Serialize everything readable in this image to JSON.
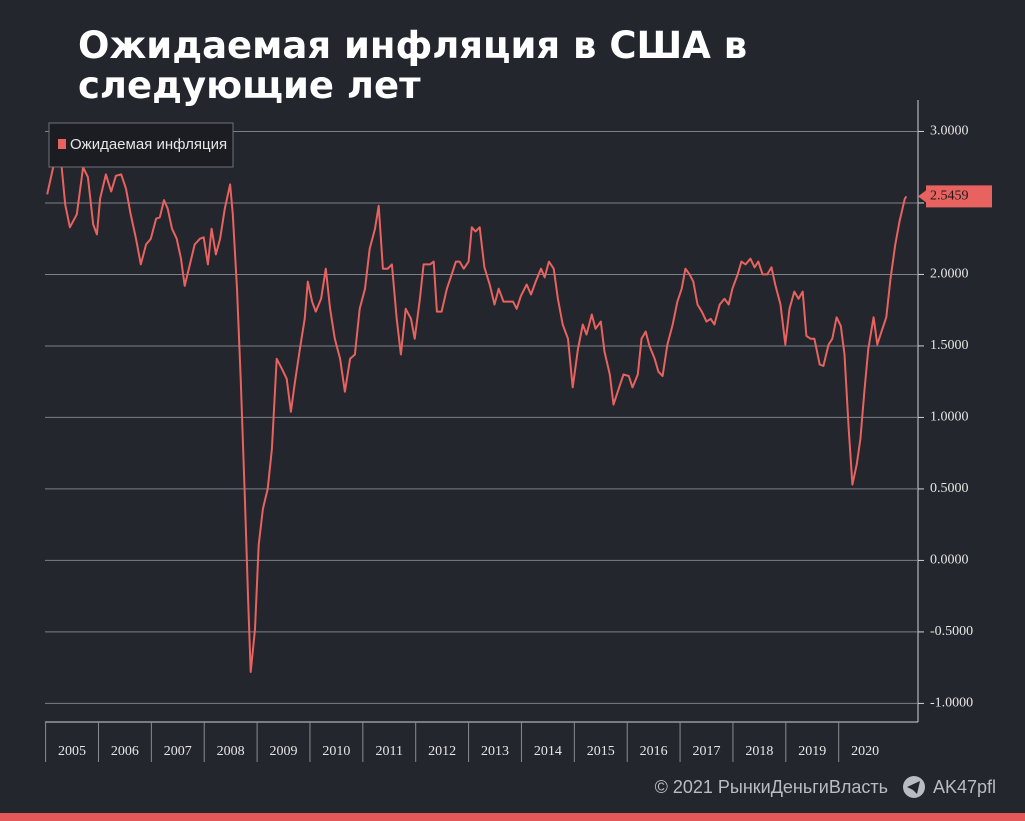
{
  "chart_data": {
    "type": "line",
    "title": "Ожидаемая инфляция в США в следующие лет",
    "x": [
      2005.03,
      2005.18,
      2005.27,
      2005.37,
      2005.46,
      2005.59,
      2005.71,
      2005.8,
      2005.9,
      2005.97,
      2006.03,
      2006.14,
      2006.24,
      2006.33,
      2006.43,
      2006.52,
      2006.61,
      2006.71,
      2006.8,
      2006.9,
      2006.99,
      2007.09,
      2007.16,
      2007.24,
      2007.31,
      2007.39,
      2007.48,
      2007.56,
      2007.63,
      2007.73,
      2007.82,
      2007.92,
      2007.99,
      2008.07,
      2008.14,
      2008.22,
      2008.3,
      2008.39,
      2008.49,
      2008.54,
      2008.62,
      2008.69,
      2008.77,
      2008.83,
      2008.88,
      2008.96,
      2009.03,
      2009.11,
      2009.2,
      2009.28,
      2009.37,
      2009.47,
      2009.56,
      2009.64,
      2009.71,
      2009.81,
      2009.9,
      2009.96,
      2010.04,
      2010.11,
      2010.21,
      2010.3,
      2010.38,
      2010.47,
      2010.57,
      2010.66,
      2010.76,
      2010.85,
      2010.94,
      2011.04,
      2011.13,
      2011.23,
      2011.3,
      2011.38,
      2011.47,
      2011.55,
      2011.64,
      2011.72,
      2011.81,
      2011.91,
      2011.98,
      2012.08,
      2012.15,
      2012.27,
      2012.34,
      2012.4,
      2012.49,
      2012.59,
      2012.68,
      2012.76,
      2012.83,
      2012.91,
      2013.0,
      2013.06,
      2013.13,
      2013.21,
      2013.3,
      2013.4,
      2013.49,
      2013.57,
      2013.66,
      2013.76,
      2013.84,
      2013.91,
      2013.99,
      2014.1,
      2014.18,
      2014.27,
      2014.37,
      2014.44,
      2014.52,
      2014.61,
      2014.69,
      2014.78,
      2014.88,
      2014.97,
      2015.07,
      2015.16,
      2015.23,
      2015.33,
      2015.4,
      2015.5,
      2015.57,
      2015.67,
      2015.74,
      2015.84,
      2015.93,
      2016.03,
      2016.1,
      2016.2,
      2016.27,
      2016.35,
      2016.42,
      2016.52,
      2016.59,
      2016.67,
      2016.76,
      2016.86,
      2016.95,
      2017.03,
      2017.1,
      2017.18,
      2017.25,
      2017.33,
      2017.41,
      2017.5,
      2017.58,
      2017.65,
      2017.75,
      2017.84,
      2017.92,
      2017.99,
      2018.09,
      2018.16,
      2018.24,
      2018.33,
      2018.41,
      2018.48,
      2018.56,
      2018.65,
      2018.73,
      2018.8,
      2018.9,
      2018.99,
      2019.07,
      2019.16,
      2019.24,
      2019.32,
      2019.39,
      2019.47,
      2019.54,
      2019.64,
      2019.71,
      2019.81,
      2019.88,
      2019.96,
      2020.04,
      2020.11,
      2020.19,
      2020.26,
      2020.34,
      2020.41,
      2020.49,
      2020.56,
      2020.66,
      2020.73,
      2020.81,
      2020.9,
      2020.98,
      2021.07,
      2021.15,
      2021.25,
      2021.28
    ],
    "series": [
      {
        "name": "Ожидаемая инфляция",
        "color": "#e8625f",
        "values": [
          2.56,
          2.81,
          2.88,
          2.49,
          2.33,
          2.42,
          2.75,
          2.68,
          2.35,
          2.28,
          2.53,
          2.7,
          2.58,
          2.69,
          2.7,
          2.6,
          2.42,
          2.25,
          2.07,
          2.21,
          2.25,
          2.39,
          2.4,
          2.52,
          2.46,
          2.32,
          2.25,
          2.11,
          1.92,
          2.07,
          2.21,
          2.25,
          2.26,
          2.07,
          2.32,
          2.14,
          2.25,
          2.46,
          2.63,
          2.42,
          1.9,
          1.27,
          0.43,
          -0.27,
          -0.78,
          -0.48,
          0.11,
          0.36,
          0.5,
          0.78,
          1.41,
          1.34,
          1.27,
          1.04,
          1.23,
          1.48,
          1.69,
          1.95,
          1.81,
          1.74,
          1.83,
          2.04,
          1.76,
          1.55,
          1.41,
          1.18,
          1.41,
          1.44,
          1.76,
          1.9,
          2.18,
          2.32,
          2.48,
          2.04,
          2.04,
          2.07,
          1.69,
          1.44,
          1.76,
          1.69,
          1.55,
          1.83,
          2.07,
          2.07,
          2.09,
          1.74,
          1.74,
          1.9,
          2.0,
          2.09,
          2.09,
          2.04,
          2.09,
          2.33,
          2.3,
          2.33,
          2.05,
          1.93,
          1.79,
          1.9,
          1.81,
          1.81,
          1.81,
          1.76,
          1.85,
          1.93,
          1.86,
          1.95,
          2.04,
          1.98,
          2.09,
          2.04,
          1.83,
          1.65,
          1.55,
          1.21,
          1.48,
          1.65,
          1.58,
          1.72,
          1.62,
          1.67,
          1.46,
          1.3,
          1.09,
          1.2,
          1.3,
          1.29,
          1.21,
          1.3,
          1.55,
          1.6,
          1.5,
          1.41,
          1.32,
          1.29,
          1.51,
          1.65,
          1.81,
          1.9,
          2.04,
          2.0,
          1.95,
          1.79,
          1.74,
          1.67,
          1.69,
          1.65,
          1.79,
          1.83,
          1.79,
          1.9,
          2.0,
          2.09,
          2.07,
          2.11,
          2.05,
          2.09,
          2.0,
          2.0,
          2.05,
          1.93,
          1.79,
          1.51,
          1.76,
          1.88,
          1.83,
          1.88,
          1.57,
          1.55,
          1.55,
          1.37,
          1.36,
          1.51,
          1.55,
          1.7,
          1.64,
          1.44,
          0.92,
          0.53,
          0.67,
          0.85,
          1.2,
          1.48,
          1.7,
          1.51,
          1.6,
          1.7,
          1.97,
          2.21,
          2.37,
          2.53,
          2.5459
        ]
      }
    ],
    "xlim": [
      2005,
      2021.5
    ],
    "xticks": [
      2005,
      2006,
      2007,
      2008,
      2009,
      2010,
      2011,
      2012,
      2013,
      2014,
      2015,
      2016,
      2017,
      2018,
      2019,
      2020
    ],
    "ylim": [
      -1.13,
      3.22
    ],
    "yticks": [
      {
        "value": -1,
        "label": "-1.0000"
      },
      {
        "value": -0.5,
        "label": "-0.5000"
      },
      {
        "value": 0,
        "label": "0.0000"
      },
      {
        "value": 0.5,
        "label": "0.5000"
      },
      {
        "value": 1,
        "label": "1.0000"
      },
      {
        "value": 1.5,
        "label": "1.5000"
      },
      {
        "value": 2,
        "label": "2.0000"
      },
      {
        "value": 2.5,
        "label": "2.5000"
      },
      {
        "value": 3,
        "label": "3.0000"
      }
    ],
    "grid": true,
    "legend": "upper left"
  },
  "footer": {
    "copyright": "© 2021  РынкиДеньгиВласть",
    "channel": "AK47pfl"
  }
}
